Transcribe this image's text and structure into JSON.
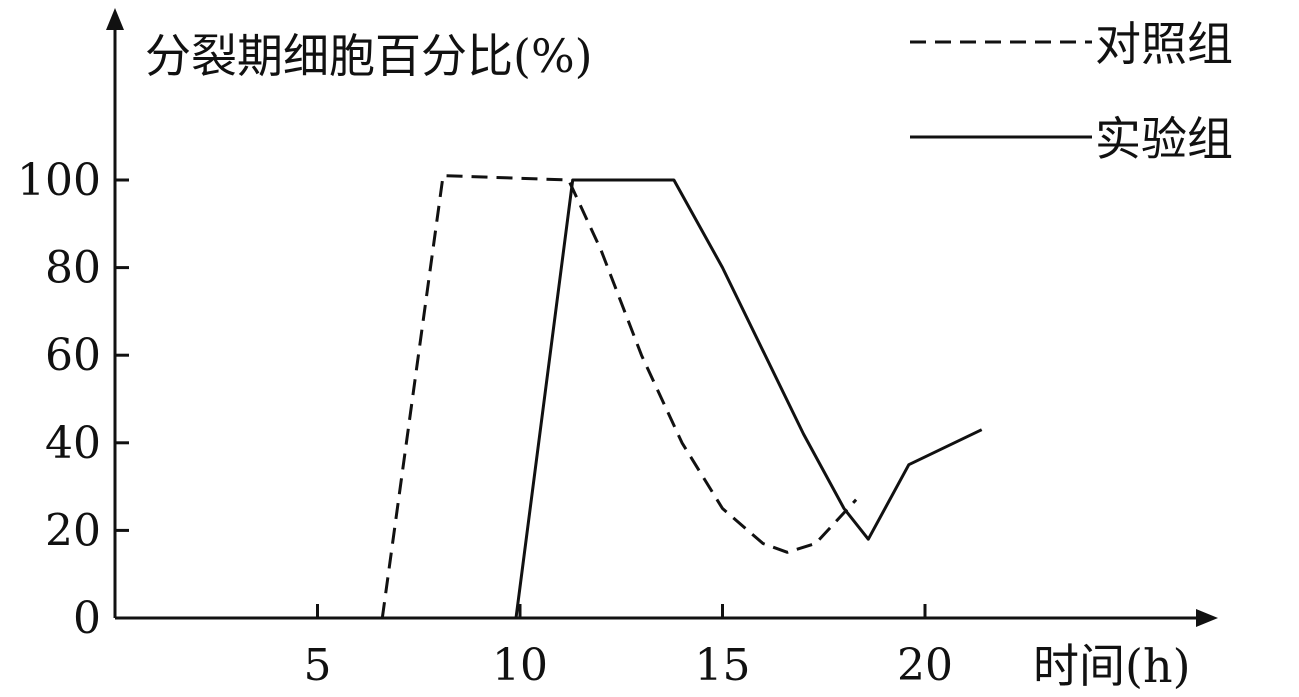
{
  "chart_data": {
    "type": "line",
    "title": "",
    "ylabel": "分裂期细胞百分比(%)",
    "xlabel": "时间(h)",
    "xlim": [
      0,
      22.5
    ],
    "ylim": [
      0,
      100
    ],
    "x_ticks": [
      5,
      10,
      15,
      20
    ],
    "y_ticks": [
      0,
      20,
      40,
      60,
      80,
      100
    ],
    "grid": false,
    "legend_position": "top-right",
    "series": [
      {
        "name": "对照组",
        "style": "dashed",
        "color": "#111111",
        "points": [
          [
            6.6,
            0
          ],
          [
            8.1,
            101
          ],
          [
            11.2,
            100
          ],
          [
            12,
            84
          ],
          [
            13,
            60
          ],
          [
            14,
            40
          ],
          [
            15,
            25
          ],
          [
            16,
            17
          ],
          [
            16.6,
            15
          ],
          [
            17.3,
            17
          ],
          [
            18.3,
            27
          ]
        ]
      },
      {
        "name": "实验组",
        "style": "solid",
        "color": "#111111",
        "points": [
          [
            9.9,
            0
          ],
          [
            11.3,
            100
          ],
          [
            13.8,
            100
          ],
          [
            15,
            80
          ],
          [
            16,
            61
          ],
          [
            17,
            42
          ],
          [
            18,
            25
          ],
          [
            18.6,
            18
          ],
          [
            19.6,
            35
          ],
          [
            21.4,
            43
          ]
        ]
      }
    ]
  }
}
